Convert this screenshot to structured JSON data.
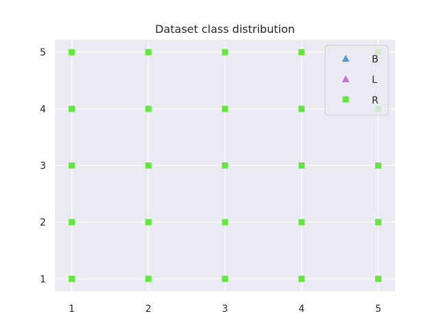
{
  "chart_data": {
    "type": "scatter",
    "title": "Dataset class distribution",
    "xlabel": "",
    "ylabel": "",
    "xlim": [
      0.78,
      5.22
    ],
    "ylim": [
      0.78,
      5.22
    ],
    "xticks": [
      1,
      2,
      3,
      4,
      5
    ],
    "yticks": [
      1,
      2,
      3,
      4,
      5
    ],
    "grid": true,
    "legend_position": "top-right",
    "series": [
      {
        "name": "B",
        "marker": "triangle",
        "color": "#4c9fd8",
        "points": []
      },
      {
        "name": "L",
        "marker": "triangle",
        "color": "#c86fd6",
        "points": []
      },
      {
        "name": "R",
        "marker": "square",
        "color": "#62e83d",
        "points": [
          [
            1,
            1
          ],
          [
            1,
            2
          ],
          [
            1,
            3
          ],
          [
            1,
            4
          ],
          [
            1,
            5
          ],
          [
            2,
            1
          ],
          [
            2,
            2
          ],
          [
            2,
            3
          ],
          [
            2,
            4
          ],
          [
            2,
            5
          ],
          [
            3,
            1
          ],
          [
            3,
            2
          ],
          [
            3,
            3
          ],
          [
            3,
            4
          ],
          [
            3,
            5
          ],
          [
            4,
            1
          ],
          [
            4,
            2
          ],
          [
            4,
            3
          ],
          [
            4,
            4
          ],
          [
            4,
            5
          ],
          [
            5,
            1
          ],
          [
            5,
            2
          ],
          [
            5,
            3
          ],
          [
            5,
            4
          ],
          [
            5,
            5
          ]
        ]
      }
    ]
  },
  "colors": {
    "plot_background": "#eaeaf2",
    "grid": "#ffffff",
    "text": "#262626"
  }
}
